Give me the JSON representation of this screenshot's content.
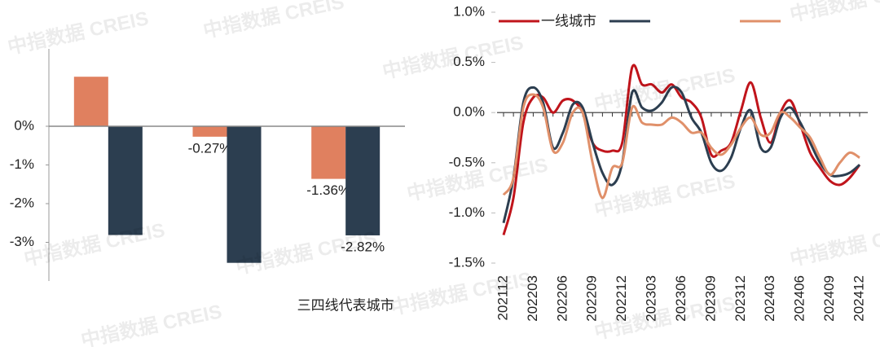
{
  "watermark": "中指数据 CREIS",
  "chart_data": [
    {
      "type": "bar",
      "categories": [
        null,
        null,
        "三四线代表城市"
      ],
      "series": [
        {
          "color": "#e0805f",
          "values": [
            1.28,
            -0.27,
            -1.36
          ],
          "value_labels": [
            null,
            "-0.27%",
            "-1.36%"
          ]
        },
        {
          "color": "#2c3e50",
          "values": [
            -2.81,
            -3.53,
            -2.82
          ],
          "value_labels": [
            null,
            null,
            "-2.82%"
          ]
        }
      ],
      "ylim": [
        -4,
        2
      ],
      "yticks": [
        {
          "value": 0,
          "label": "0%"
        },
        {
          "value": -1,
          "label": "-1%"
        },
        {
          "value": -2,
          "label": "-2%"
        },
        {
          "value": -3,
          "label": "-3%"
        }
      ]
    },
    {
      "type": "line",
      "categories": [
        "202112",
        null,
        null,
        "202203",
        null,
        null,
        "202206",
        null,
        null,
        "202209",
        null,
        null,
        "202212",
        null,
        null,
        "202303",
        null,
        null,
        "202306",
        null,
        null,
        "202309",
        null,
        null,
        "202312",
        null,
        null,
        "202403",
        null,
        null,
        "202406",
        null,
        null,
        "202409",
        null,
        null,
        "202412"
      ],
      "series": [
        {
          "name": "一线城市",
          "color": "#c0141b",
          "values": [
            -1.22,
            -0.85,
            -0.1,
            0.15,
            0.15,
            0.0,
            0.12,
            0.12,
            0.0,
            -0.3,
            -0.38,
            -0.38,
            -0.3,
            0.45,
            0.28,
            0.28,
            0.2,
            0.28,
            0.15,
            0.1,
            -0.05,
            -0.42,
            -0.38,
            -0.3,
            0.02,
            0.3,
            -0.05,
            -0.3,
            0.0,
            0.12,
            -0.12,
            -0.4,
            -0.55,
            -0.68,
            -0.72,
            -0.65,
            -0.52
          ]
        },
        {
          "color": "#2c3e50",
          "values": [
            -1.1,
            -0.65,
            0.1,
            0.25,
            0.1,
            -0.35,
            -0.2,
            0.08,
            0.05,
            -0.3,
            -0.6,
            -0.72,
            -0.5,
            0.2,
            0.05,
            0.02,
            0.1,
            0.25,
            0.2,
            -0.05,
            -0.2,
            -0.5,
            -0.58,
            -0.45,
            -0.15,
            0.02,
            -0.35,
            -0.35,
            -0.05,
            0.05,
            -0.1,
            -0.3,
            -0.5,
            -0.62,
            -0.63,
            -0.6,
            -0.52
          ]
        },
        {
          "color": "#e0906a",
          "values": [
            -0.82,
            -0.65,
            0.05,
            0.18,
            0.05,
            -0.38,
            -0.3,
            0.0,
            0.0,
            -0.5,
            -0.85,
            -0.55,
            -0.5,
            0.05,
            -0.1,
            -0.12,
            -0.12,
            -0.05,
            -0.1,
            -0.2,
            -0.2,
            -0.35,
            -0.42,
            -0.32,
            -0.15,
            -0.05,
            -0.22,
            -0.2,
            0.0,
            -0.05,
            -0.15,
            -0.25,
            -0.45,
            -0.62,
            -0.5,
            -0.4,
            -0.45
          ]
        }
      ],
      "ylim": [
        -1.5,
        1.0
      ],
      "yticks": [
        {
          "value": 1.0,
          "label": "1.0%"
        },
        {
          "value": 0.5,
          "label": "0.5%"
        },
        {
          "value": 0.0,
          "label": "0.0%"
        },
        {
          "value": -0.5,
          "label": "-0.5%"
        },
        {
          "value": -1.0,
          "label": "-1.0%"
        },
        {
          "value": -1.5,
          "label": "-1.5%"
        }
      ]
    }
  ]
}
